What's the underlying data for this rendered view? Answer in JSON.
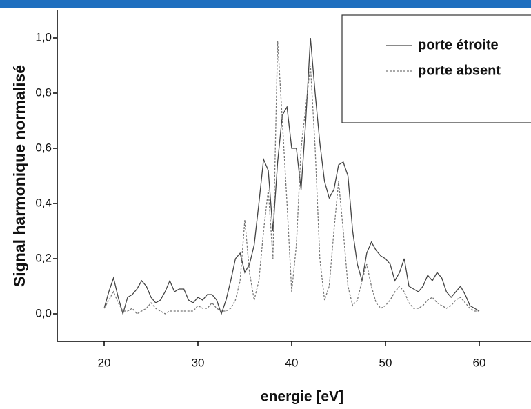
{
  "chart_data": {
    "type": "line",
    "x_label": "energie [eV]",
    "y_label": "Signal harmonique normalisé",
    "x": [
      20,
      20.5,
      21,
      21.5,
      22,
      22.5,
      23,
      23.5,
      24,
      24.5,
      25,
      25.5,
      26,
      26.5,
      27,
      27.5,
      28,
      28.5,
      29,
      29.5,
      30,
      30.5,
      31,
      31.5,
      32,
      32.5,
      33,
      33.5,
      34,
      34.5,
      35,
      35.5,
      36,
      36.5,
      37,
      37.5,
      38,
      38.5,
      39,
      39.5,
      40,
      40.5,
      41,
      41.5,
      42,
      42.5,
      43,
      43.5,
      44,
      44.5,
      45,
      45.5,
      46,
      46.5,
      47,
      47.5,
      48,
      48.5,
      49,
      49.5,
      50,
      50.5,
      51,
      51.5,
      52,
      52.5,
      53,
      53.5,
      54,
      54.5,
      55,
      55.5,
      56,
      56.5,
      57,
      57.5,
      58,
      58.5,
      59,
      59.5,
      60
    ],
    "series": [
      {
        "name": "porte étroite",
        "color": "#444444",
        "dashed": false,
        "values": [
          0.02,
          0.08,
          0.13,
          0.06,
          0.0,
          0.06,
          0.07,
          0.09,
          0.12,
          0.1,
          0.06,
          0.04,
          0.05,
          0.08,
          0.12,
          0.08,
          0.09,
          0.09,
          0.05,
          0.04,
          0.06,
          0.05,
          0.07,
          0.07,
          0.05,
          0.0,
          0.05,
          0.12,
          0.2,
          0.22,
          0.15,
          0.18,
          0.25,
          0.4,
          0.56,
          0.52,
          0.3,
          0.55,
          0.72,
          0.75,
          0.6,
          0.6,
          0.45,
          0.7,
          1.0,
          0.8,
          0.62,
          0.48,
          0.42,
          0.45,
          0.54,
          0.55,
          0.5,
          0.3,
          0.18,
          0.12,
          0.22,
          0.26,
          0.23,
          0.21,
          0.2,
          0.18,
          0.12,
          0.15,
          0.2,
          0.1,
          0.09,
          0.08,
          0.1,
          0.14,
          0.12,
          0.15,
          0.13,
          0.08,
          0.06,
          0.08,
          0.1,
          0.07,
          0.03,
          0.02,
          0.01
        ]
      },
      {
        "name": "porte absent",
        "color": "#777777",
        "dashed": true,
        "values": [
          0.02,
          0.05,
          0.08,
          0.04,
          0.01,
          0.01,
          0.02,
          0.0,
          0.01,
          0.02,
          0.04,
          0.02,
          0.01,
          0.0,
          0.01,
          0.01,
          0.01,
          0.01,
          0.01,
          0.01,
          0.03,
          0.02,
          0.02,
          0.04,
          0.02,
          0.01,
          0.01,
          0.02,
          0.05,
          0.12,
          0.34,
          0.15,
          0.05,
          0.12,
          0.3,
          0.45,
          0.2,
          0.99,
          0.7,
          0.4,
          0.08,
          0.25,
          0.6,
          0.75,
          0.9,
          0.6,
          0.2,
          0.05,
          0.1,
          0.3,
          0.48,
          0.3,
          0.1,
          0.03,
          0.05,
          0.12,
          0.18,
          0.1,
          0.04,
          0.02,
          0.03,
          0.05,
          0.08,
          0.1,
          0.08,
          0.04,
          0.02,
          0.02,
          0.03,
          0.05,
          0.06,
          0.04,
          0.03,
          0.02,
          0.03,
          0.05,
          0.06,
          0.04,
          0.02,
          0.01,
          0.01
        ]
      }
    ],
    "xlim": [
      15,
      65
    ],
    "xticks": [
      20,
      30,
      40,
      50,
      60
    ],
    "ylim": [
      -0.1,
      1.1
    ],
    "yticks": [
      {
        "value": 0,
        "label": "0,0"
      },
      {
        "value": 0.2,
        "label": "0,2"
      },
      {
        "value": 0.4,
        "label": "0,4"
      },
      {
        "value": 0.6,
        "label": "0,6"
      },
      {
        "value": 0.8,
        "label": "0,8"
      },
      {
        "value": 1.0,
        "label": "1,0"
      }
    ],
    "legend": "top-right"
  }
}
